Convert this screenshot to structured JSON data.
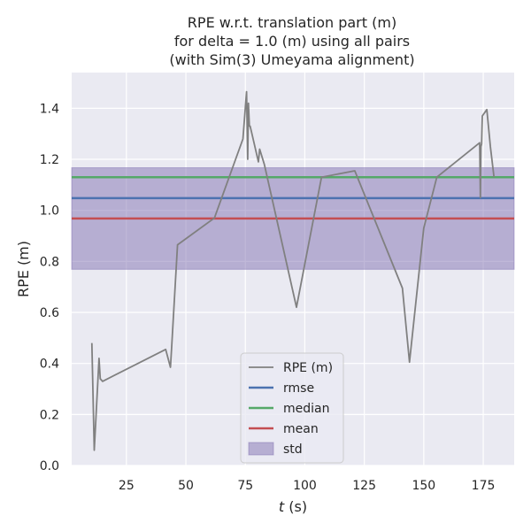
{
  "chart_data": {
    "type": "line",
    "title_lines": [
      "RPE w.r.t. translation part (m)",
      "for delta = 1.0 (m) using all pairs",
      "(with Sim(3) Umeyama alignment)"
    ],
    "xlabel_var": "t",
    "xlabel_unit": " (s)",
    "ylabel": "RPE (m)",
    "xlim": [
      2,
      188
    ],
    "ylim": [
      0,
      1.54
    ],
    "x_ticks": [
      25,
      50,
      75,
      100,
      125,
      150,
      175
    ],
    "x_tick_labels": [
      "25",
      "50",
      "75",
      "100",
      "125",
      "150",
      "175"
    ],
    "y_ticks": [
      0.0,
      0.2,
      0.4,
      0.6,
      0.8,
      1.0,
      1.2,
      1.4
    ],
    "y_tick_labels": [
      "0.0",
      "0.2",
      "0.4",
      "0.6",
      "0.8",
      "1.0",
      "1.2",
      "1.4"
    ],
    "grid": true,
    "background": "#eaeaf2",
    "series": [
      {
        "name": "RPE (m)",
        "color": "#808080",
        "x": [
          10.5,
          11.5,
          13.5,
          14.0,
          15.0,
          41.5,
          43.5,
          44.0,
          46.5,
          62.0,
          74.0,
          75.5,
          76.0,
          76.3,
          76.7,
          77.0,
          77.5,
          80.5,
          81.0,
          83.0,
          96.5,
          107.0,
          121.0,
          141.0,
          144.0,
          150.0,
          155.5,
          173.5,
          173.8,
          174.0,
          174.3,
          174.6,
          176.5,
          178.0,
          179.5
        ],
        "y": [
          0.48,
          0.06,
          0.42,
          0.34,
          0.33,
          0.455,
          0.385,
          0.46,
          0.865,
          0.97,
          1.28,
          1.465,
          1.2,
          1.42,
          1.33,
          1.33,
          1.31,
          1.19,
          1.24,
          1.18,
          0.62,
          1.13,
          1.155,
          0.695,
          0.405,
          0.93,
          1.13,
          1.265,
          1.05,
          1.25,
          1.26,
          1.37,
          1.395,
          1.25,
          1.13
        ]
      }
    ],
    "stats": [
      {
        "name": "rmse",
        "value": 1.048,
        "color": "#4c72b0"
      },
      {
        "name": "median",
        "value": 1.13,
        "color": "#55a868"
      },
      {
        "name": "mean",
        "value": 0.968,
        "color": "#c44e52"
      }
    ],
    "std_band": {
      "name": "std",
      "low": 0.769,
      "high": 1.167,
      "color": "#8172b2"
    },
    "legend": {
      "placement": "bottom-center",
      "entries": [
        "RPE (m)",
        "rmse",
        "median",
        "mean",
        "std"
      ]
    }
  }
}
